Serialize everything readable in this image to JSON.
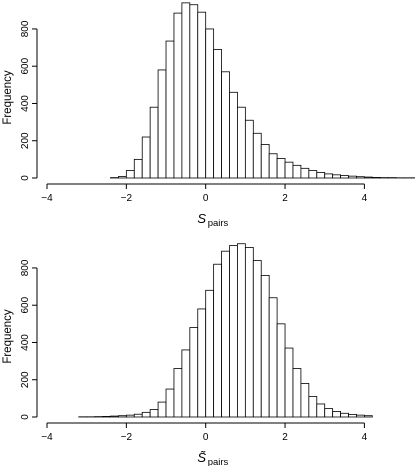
{
  "chart_data": [
    {
      "type": "bar",
      "xlabel": {
        "main": "S",
        "sub": "pairs"
      },
      "ylabel": "Frequency",
      "xlim": [
        -4,
        5.2
      ],
      "ylim": [
        0,
        950
      ],
      "xticks": [
        -4,
        -2,
        0,
        2,
        4
      ],
      "yticks": [
        0,
        200,
        400,
        600,
        800
      ],
      "bin_width": 0.2,
      "bin_start": -2.4,
      "values": [
        2,
        8,
        40,
        100,
        220,
        380,
        580,
        735,
        885,
        940,
        930,
        890,
        800,
        690,
        570,
        460,
        380,
        310,
        240,
        180,
        130,
        105,
        85,
        68,
        52,
        40,
        30,
        22,
        17,
        13,
        10,
        7,
        5,
        3,
        2,
        2,
        1,
        1,
        1
      ]
    },
    {
      "type": "bar",
      "xlabel": {
        "main": "S̃",
        "sub": "pairs"
      },
      "ylabel": "Frequency",
      "xlim": [
        -4,
        5.2
      ],
      "ylim": [
        0,
        950
      ],
      "xticks": [
        -4,
        -2,
        0,
        2,
        4
      ],
      "yticks": [
        0,
        200,
        400,
        600,
        800
      ],
      "bin_width": 0.2,
      "bin_start": -3.2,
      "values": [
        1,
        1,
        2,
        3,
        5,
        7,
        10,
        15,
        25,
        40,
        80,
        150,
        260,
        360,
        480,
        580,
        680,
        820,
        890,
        920,
        930,
        910,
        840,
        760,
        640,
        500,
        370,
        260,
        180,
        110,
        70,
        45,
        30,
        20,
        14,
        10,
        7
      ]
    }
  ]
}
